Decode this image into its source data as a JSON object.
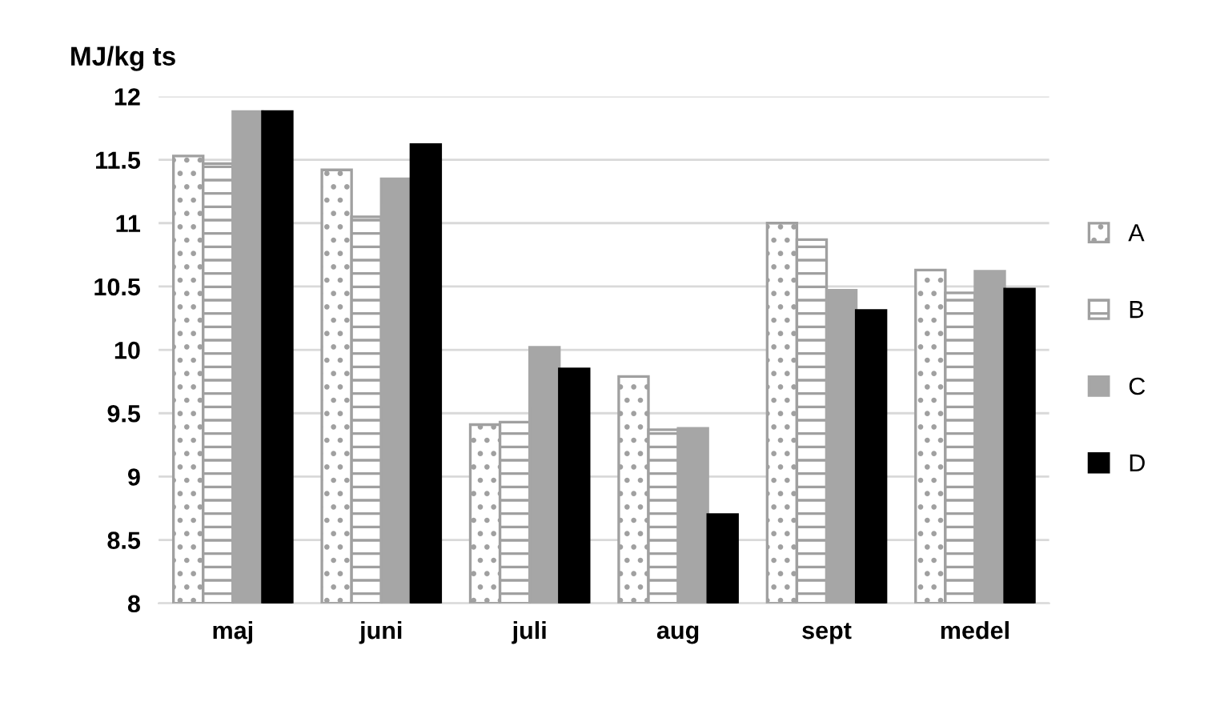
{
  "chart_data": {
    "type": "bar",
    "ylabel": "MJ/kg ts",
    "categories": [
      "maj",
      "juni",
      "juli",
      "aug",
      "sept",
      "medel"
    ],
    "series": [
      {
        "name": "A",
        "color": "#a0a0a0",
        "values": [
          11.53,
          11.42,
          9.41,
          9.79,
          11.0,
          10.63
        ]
      },
      {
        "name": "B",
        "color": "#a0a0a0",
        "values": [
          11.47,
          11.05,
          9.43,
          9.37,
          10.87,
          10.45
        ]
      },
      {
        "name": "C",
        "color": "#a6a6a6",
        "values": [
          11.88,
          11.35,
          10.02,
          9.38,
          10.47,
          10.62
        ]
      },
      {
        "name": "D",
        "color": "#000000",
        "values": [
          11.88,
          11.62,
          9.85,
          8.7,
          10.31,
          10.48
        ]
      }
    ],
    "ylim": [
      8,
      12
    ],
    "yticks": [
      8,
      8.5,
      9,
      9.5,
      10,
      10.5,
      11,
      11.5,
      12
    ],
    "grid": "y",
    "legend": "right"
  }
}
